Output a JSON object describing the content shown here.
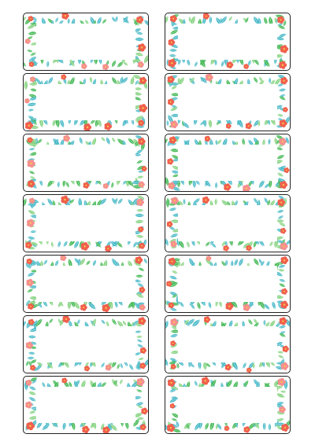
{
  "sheet": {
    "columns": 2,
    "rows": 7,
    "border_color": "#222222",
    "palette": {
      "leaf_teal": "#3fb6c4",
      "leaf_green": "#39b54a",
      "leaf_light": "#7fd07a",
      "flower_coral": "#f0604d",
      "flower_pink": "#f58f8f",
      "flower_center": "#f7c948"
    },
    "decoration": "tropical-floral-border",
    "labels": [
      {
        "id": "label-1"
      },
      {
        "id": "label-2"
      },
      {
        "id": "label-3"
      },
      {
        "id": "label-4"
      },
      {
        "id": "label-5"
      },
      {
        "id": "label-6"
      },
      {
        "id": "label-7"
      },
      {
        "id": "label-8"
      },
      {
        "id": "label-9"
      },
      {
        "id": "label-10"
      },
      {
        "id": "label-11"
      },
      {
        "id": "label-12"
      },
      {
        "id": "label-13"
      },
      {
        "id": "label-14"
      }
    ]
  }
}
